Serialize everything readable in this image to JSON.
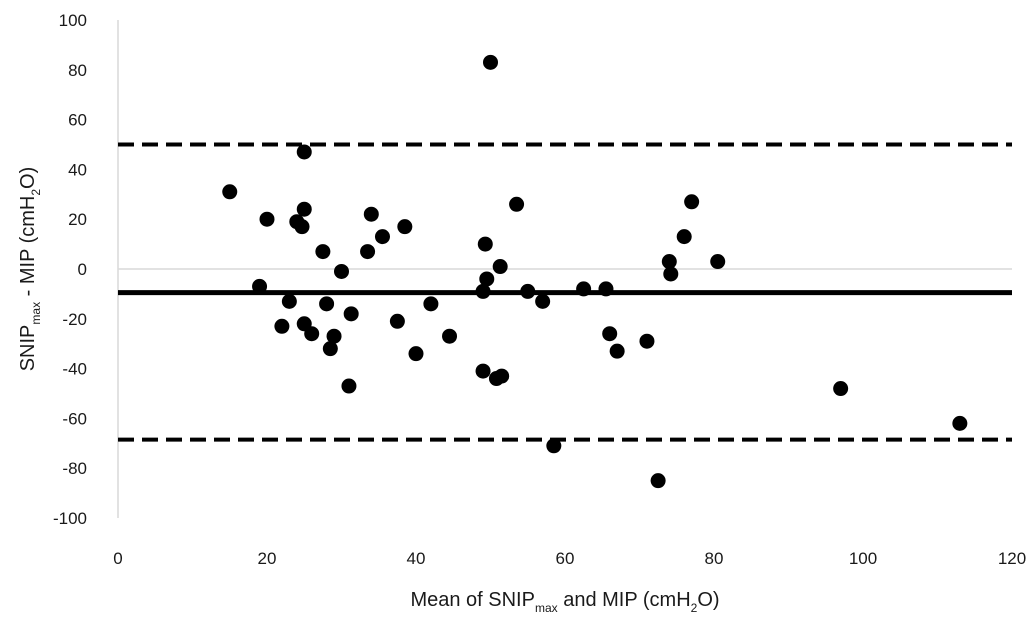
{
  "chart_data": {
    "type": "scatter",
    "title": "",
    "xlabel": {
      "main": "Mean of SNIP",
      "sub": "max",
      "rest": " and MIP (cmH",
      "sub2": "2",
      "end": "O)"
    },
    "ylabel": {
      "main": "SNIP",
      "sub": "max",
      "rest": " - MIP (cmH",
      "sub2": "2",
      "end": "O)"
    },
    "xlim": [
      0,
      120
    ],
    "ylim": [
      -100,
      100
    ],
    "x_ticks": [
      0,
      20,
      40,
      60,
      80,
      100,
      120
    ],
    "y_ticks": [
      100,
      80,
      60,
      40,
      20,
      0,
      -20,
      -40,
      -60,
      -80,
      -100
    ],
    "grid": false,
    "reference_lines": [
      {
        "y": 50,
        "style": "dashed"
      },
      {
        "y": -9.5,
        "style": "solid"
      },
      {
        "y": -68.5,
        "style": "dashed"
      }
    ],
    "points": [
      {
        "x": 15,
        "y": 31
      },
      {
        "x": 19,
        "y": -7
      },
      {
        "x": 20,
        "y": 20
      },
      {
        "x": 22,
        "y": -23
      },
      {
        "x": 23,
        "y": -13
      },
      {
        "x": 24,
        "y": 19
      },
      {
        "x": 24.7,
        "y": 17
      },
      {
        "x": 25,
        "y": 47
      },
      {
        "x": 25,
        "y": 24
      },
      {
        "x": 25,
        "y": -22
      },
      {
        "x": 26,
        "y": -26
      },
      {
        "x": 27.5,
        "y": 7
      },
      {
        "x": 28,
        "y": -14
      },
      {
        "x": 28.5,
        "y": -32
      },
      {
        "x": 29,
        "y": -27
      },
      {
        "x": 30,
        "y": -1
      },
      {
        "x": 31,
        "y": -47
      },
      {
        "x": 31.3,
        "y": -18
      },
      {
        "x": 33.5,
        "y": 7
      },
      {
        "x": 34,
        "y": 22
      },
      {
        "x": 35.5,
        "y": 13
      },
      {
        "x": 37.5,
        "y": -21
      },
      {
        "x": 38.5,
        "y": 17
      },
      {
        "x": 40,
        "y": -34
      },
      {
        "x": 42,
        "y": -14
      },
      {
        "x": 44.5,
        "y": -27
      },
      {
        "x": 49,
        "y": -9
      },
      {
        "x": 49,
        "y": -41
      },
      {
        "x": 49.3,
        "y": 10
      },
      {
        "x": 49.5,
        "y": -4
      },
      {
        "x": 50,
        "y": 83
      },
      {
        "x": 50.8,
        "y": -44
      },
      {
        "x": 51.3,
        "y": 1
      },
      {
        "x": 51.5,
        "y": -43
      },
      {
        "x": 53.5,
        "y": 26
      },
      {
        "x": 55,
        "y": -9
      },
      {
        "x": 57,
        "y": -13
      },
      {
        "x": 58.5,
        "y": -71
      },
      {
        "x": 62.5,
        "y": -8
      },
      {
        "x": 65.5,
        "y": -8
      },
      {
        "x": 66,
        "y": -26
      },
      {
        "x": 67,
        "y": -33
      },
      {
        "x": 71,
        "y": -29
      },
      {
        "x": 72.5,
        "y": -85
      },
      {
        "x": 74,
        "y": 3
      },
      {
        "x": 74.2,
        "y": -2
      },
      {
        "x": 76,
        "y": 13
      },
      {
        "x": 77,
        "y": 27
      },
      {
        "x": 80.5,
        "y": 3
      },
      {
        "x": 97,
        "y": -48
      },
      {
        "x": 113,
        "y": -62
      }
    ]
  }
}
